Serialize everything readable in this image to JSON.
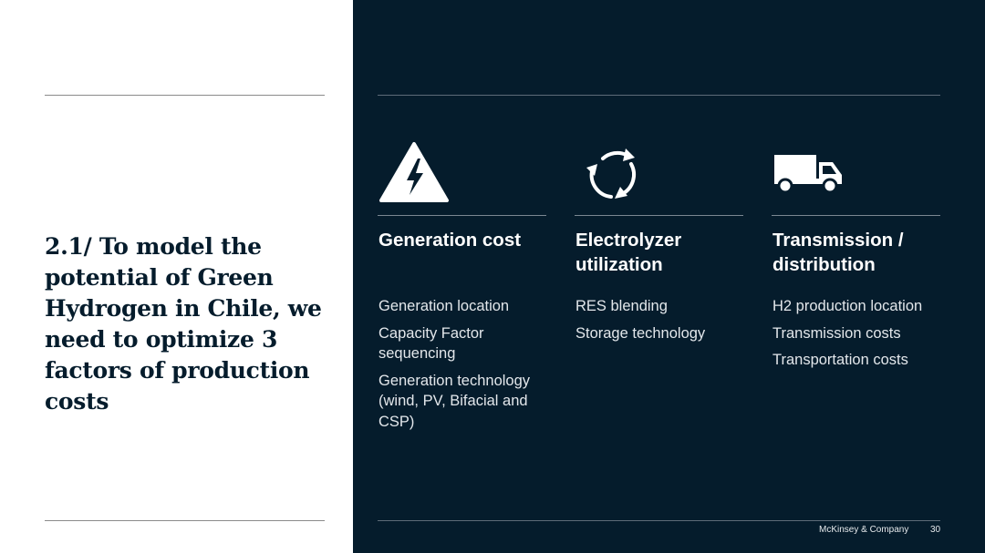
{
  "title": "2.1/ To model the potential of Green Hydrogen in Chile, we need to optimize 3 factors of production costs",
  "columns": [
    {
      "icon": "lightning-warning-icon",
      "heading": "Generation cost",
      "items": [
        "Generation location",
        "Capacity Factor sequencing",
        "Generation technology (wind, PV, Bifacial and CSP)"
      ]
    },
    {
      "icon": "cycle-arrows-icon",
      "heading": "Electrolyzer utilization",
      "items": [
        "RES blending",
        "Storage technology"
      ]
    },
    {
      "icon": "truck-icon",
      "heading": "Transmission / distribution",
      "items": [
        "H2 production location",
        "Transmission costs",
        "Transportation costs"
      ]
    }
  ],
  "footer": {
    "company": "McKinsey & Company",
    "page_number": "30"
  },
  "colors": {
    "navy": "#051c2c",
    "white": "#ffffff"
  }
}
